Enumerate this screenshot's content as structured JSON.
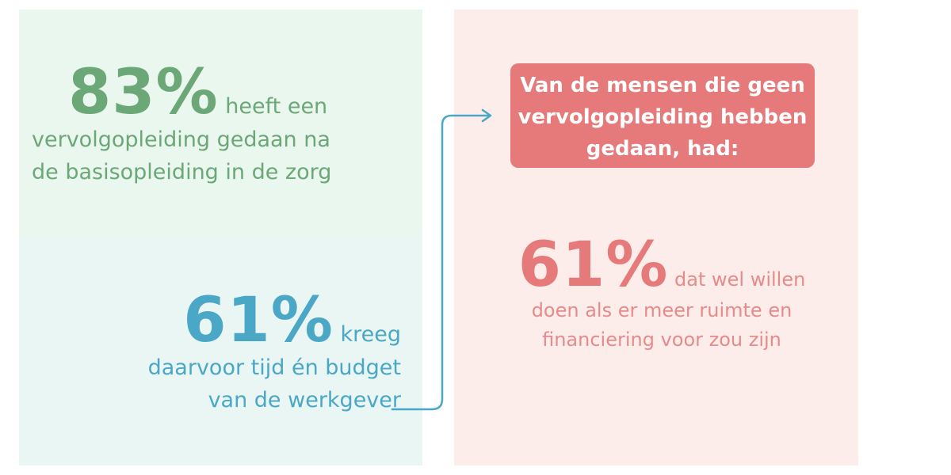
{
  "stat_83": {
    "value": "83%",
    "line1": "heeft een",
    "line2": "vervolgopleiding gedaan na",
    "line3": "de basisopleiding in de zorg"
  },
  "stat_61_teal": {
    "value": "61%",
    "line1": "kreeg",
    "line2": "daarvoor tijd én budget",
    "line3": "van de werkgever"
  },
  "callout": {
    "line1": "Van de mensen die geen",
    "line2": "vervolgopleiding hebben",
    "line3": "gedaan, had:"
  },
  "stat_61_pink": {
    "value": "61%",
    "line1": "dat wel willen",
    "line2": "doen als er meer ruimte en",
    "line3": "financiering voor zou zijn"
  },
  "colors": {
    "green": "#6ba777",
    "teal": "#4aa7c6",
    "coral": "#e67a7a",
    "green_bg": "#eaf7ee",
    "teal_bg": "#e9f6f4",
    "pink_bg": "#fdedea"
  }
}
